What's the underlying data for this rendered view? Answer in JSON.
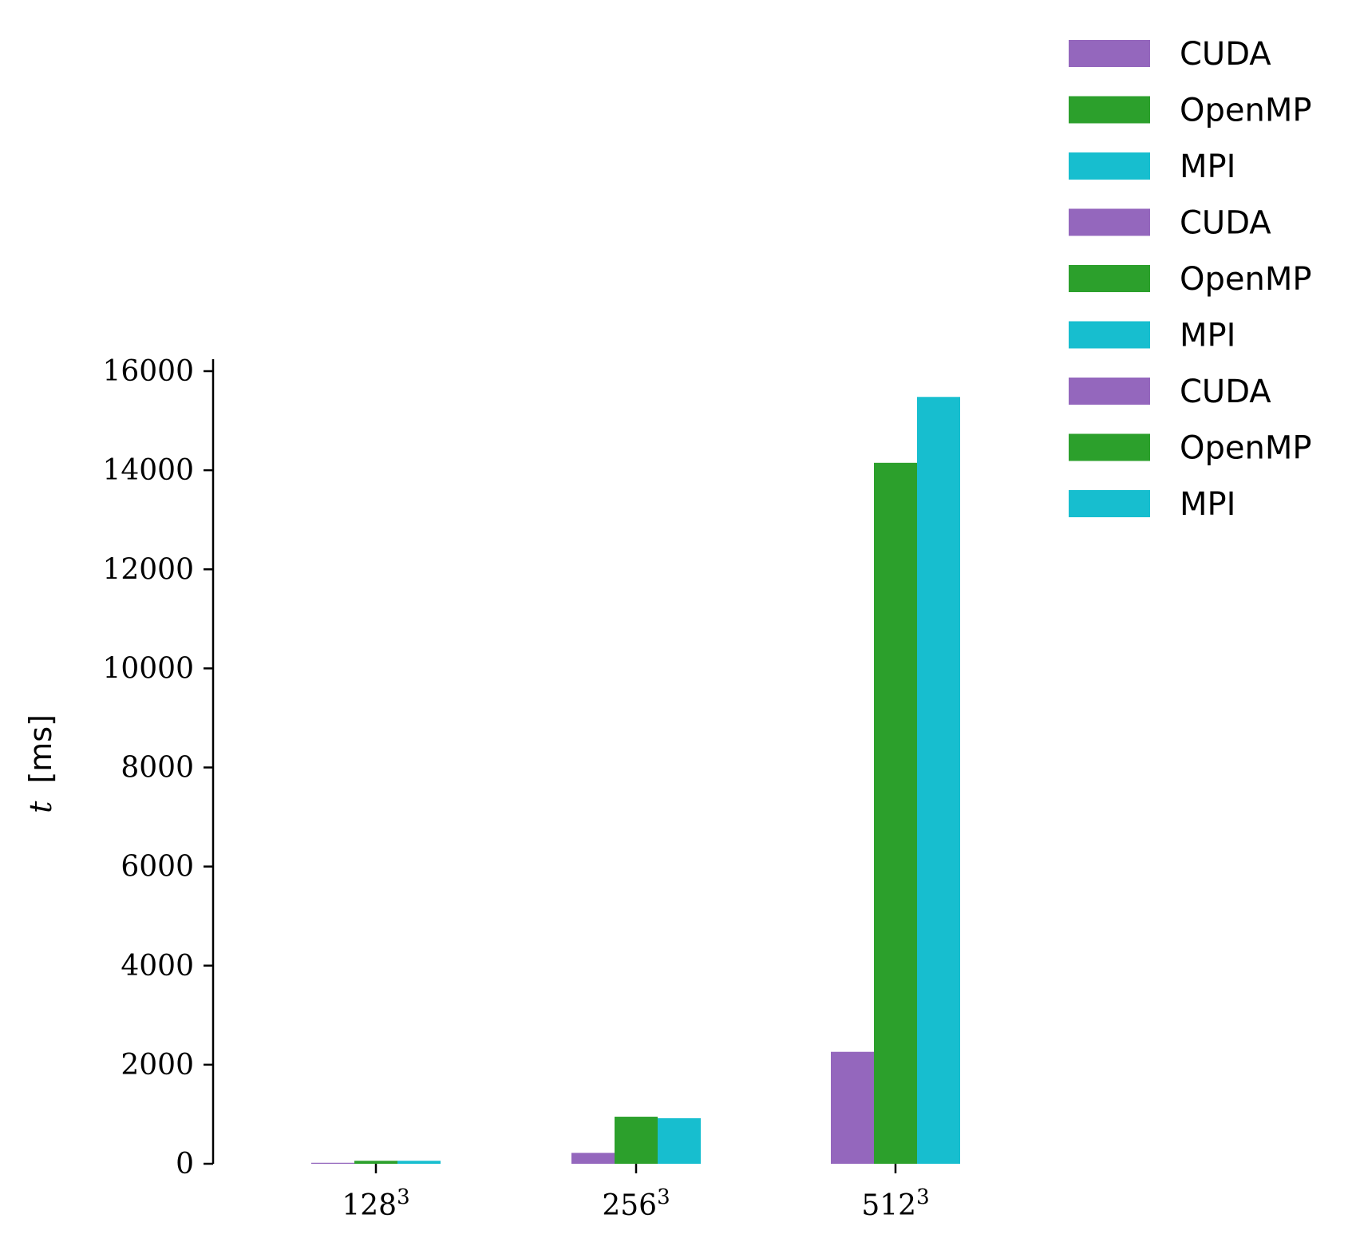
{
  "chart_data": {
    "type": "bar",
    "categories": [
      "128",
      "256",
      "512"
    ],
    "category_superscript": "3",
    "ylabel": {
      "var": "t",
      "unit": "[ms]"
    },
    "xlabel": "",
    "ylim": [
      0,
      16000
    ],
    "yticks": [
      "0",
      "2000",
      "4000",
      "6000",
      "8000",
      "10000",
      "12000",
      "14000",
      "16000"
    ],
    "grid": false,
    "legend_position": "top-right",
    "series": [
      {
        "name": "CUDA",
        "color": "#9467bd",
        "values": [
          20,
          220,
          2260
        ]
      },
      {
        "name": "OpenMP",
        "color": "#2ca02c",
        "values": [
          60,
          950,
          14150
        ]
      },
      {
        "name": "MPI",
        "color": "#17becf",
        "values": [
          60,
          920,
          15480
        ]
      }
    ],
    "legend_entries": [
      {
        "label": "CUDA",
        "color": "#9467bd"
      },
      {
        "label": "OpenMP",
        "color": "#2ca02c"
      },
      {
        "label": "MPI",
        "color": "#17becf"
      },
      {
        "label": "CUDA",
        "color": "#9467bd"
      },
      {
        "label": "OpenMP",
        "color": "#2ca02c"
      },
      {
        "label": "MPI",
        "color": "#17becf"
      },
      {
        "label": "CUDA",
        "color": "#9467bd"
      },
      {
        "label": "OpenMP",
        "color": "#2ca02c"
      },
      {
        "label": "MPI",
        "color": "#17becf"
      }
    ]
  }
}
